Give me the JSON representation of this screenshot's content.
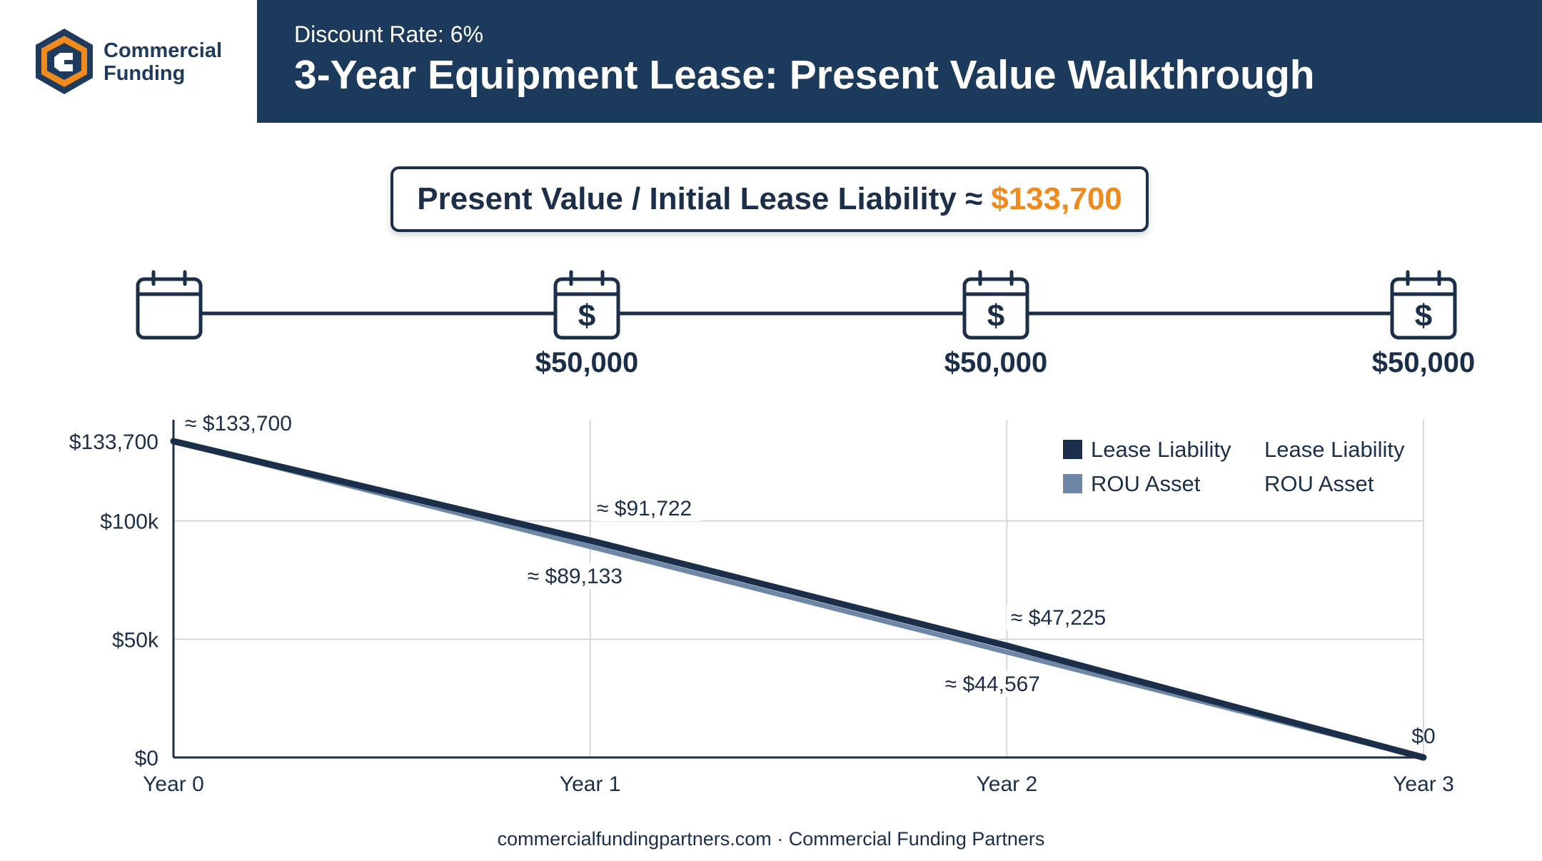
{
  "brand": {
    "line1": "Commercial",
    "line2": "Funding",
    "colors": {
      "navy": "#1b3a5c",
      "orange": "#f08a1c",
      "steel": "#6e87a6"
    }
  },
  "header": {
    "subtitle": "Discount Rate: 6%",
    "title": "3-Year Equipment Lease: Present Value Walkthrough"
  },
  "summary": {
    "label": "Present Value / Initial Lease Liability ≈",
    "value": "$133,700"
  },
  "timeline": {
    "icon": "calendar-icon",
    "payment_icon": "calendar-dollar-icon",
    "payments": [
      "$50,000",
      "$50,000",
      "$50,000"
    ]
  },
  "chart_data": {
    "type": "line",
    "x": [
      "Year 0",
      "Year 1",
      "Year 2",
      "Year 3"
    ],
    "ylim": [
      0,
      133700
    ],
    "y_ticks": [
      {
        "value": 0,
        "label": "$0"
      },
      {
        "value": 50000,
        "label": "$50k"
      },
      {
        "value": 100000,
        "label": "$100k"
      },
      {
        "value": 133700,
        "label": "$133,700"
      }
    ],
    "grid": true,
    "legend_position": "top-right",
    "legend_extra_labels": [
      "Lease Liability",
      "ROU Asset"
    ],
    "series": [
      {
        "name": "Lease Liability",
        "color": "#1b2f4a",
        "values": [
          133700,
          91722,
          47225,
          0
        ],
        "labels": [
          "≈ $133,700",
          "≈ $91,722",
          "≈ $47,225",
          "$0"
        ]
      },
      {
        "name": "ROU Asset",
        "color": "#6e87a6",
        "values": [
          133700,
          89133,
          44567,
          0
        ],
        "labels": [
          "",
          "≈ $89,133",
          "≈ $44,567",
          ""
        ]
      }
    ]
  },
  "footer": {
    "text": "commercialfundingpartners.com · Commercial Funding Partners"
  }
}
